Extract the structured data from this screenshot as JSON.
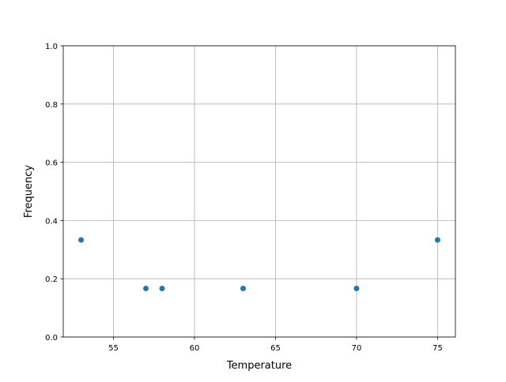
{
  "chart_data": {
    "type": "scatter",
    "title": "",
    "xlabel": "Temperature",
    "ylabel": "Frequency",
    "x": [
      53,
      57,
      58,
      63,
      70,
      75
    ],
    "y": [
      0.3333,
      0.1667,
      0.1667,
      0.1667,
      0.1667,
      0.3333
    ],
    "xlim": [
      51.9,
      76.1
    ],
    "ylim": [
      0.0,
      1.0
    ],
    "xticks": [
      "55",
      "60",
      "65",
      "70",
      "75"
    ],
    "yticks": [
      "0.0",
      "0.2",
      "0.4",
      "0.6",
      "0.8",
      "1.0"
    ],
    "grid": true,
    "marker_color": "#1f77b4"
  }
}
